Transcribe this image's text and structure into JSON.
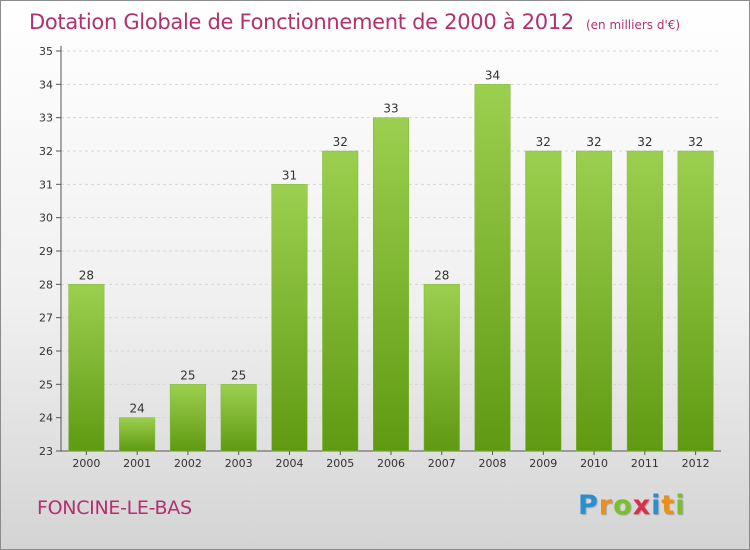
{
  "title": "Dotation Globale de Fonctionnement de 2000 à 2012",
  "unit": "(en milliers d'€)",
  "commune": "FONCINE-LE-BAS",
  "brand": {
    "text": "Proxiti",
    "letters": [
      {
        "char": "P",
        "color": "#2a8fd0"
      },
      {
        "char": "r",
        "color": "#e8901a"
      },
      {
        "char": "o",
        "color": "#7bbf2a"
      },
      {
        "char": "x",
        "color": "#d9304a"
      },
      {
        "char": "i",
        "color": "#2a8fd0"
      },
      {
        "char": "t",
        "color": "#e8901a"
      },
      {
        "char": "i",
        "color": "#7bbf2a"
      }
    ]
  },
  "colors": {
    "bar_top": "#9ccf4f",
    "bar_bottom": "#5f9a12",
    "title": "#b3306e"
  },
  "chart_data": {
    "type": "bar",
    "title": "Dotation Globale de Fonctionnement de 2000 à 2012",
    "subtitle": "(en milliers d'€)",
    "categories": [
      "2000",
      "2001",
      "2002",
      "2003",
      "2004",
      "2005",
      "2006",
      "2007",
      "2008",
      "2009",
      "2010",
      "2011",
      "2012"
    ],
    "values": [
      28,
      24,
      25,
      25,
      31,
      32,
      33,
      28,
      34,
      32,
      32,
      32,
      32
    ],
    "ylim": [
      23,
      35
    ],
    "yticks": [
      23,
      24,
      25,
      26,
      27,
      28,
      29,
      30,
      31,
      32,
      33,
      34,
      35
    ],
    "grid": true,
    "data_labels": true
  }
}
